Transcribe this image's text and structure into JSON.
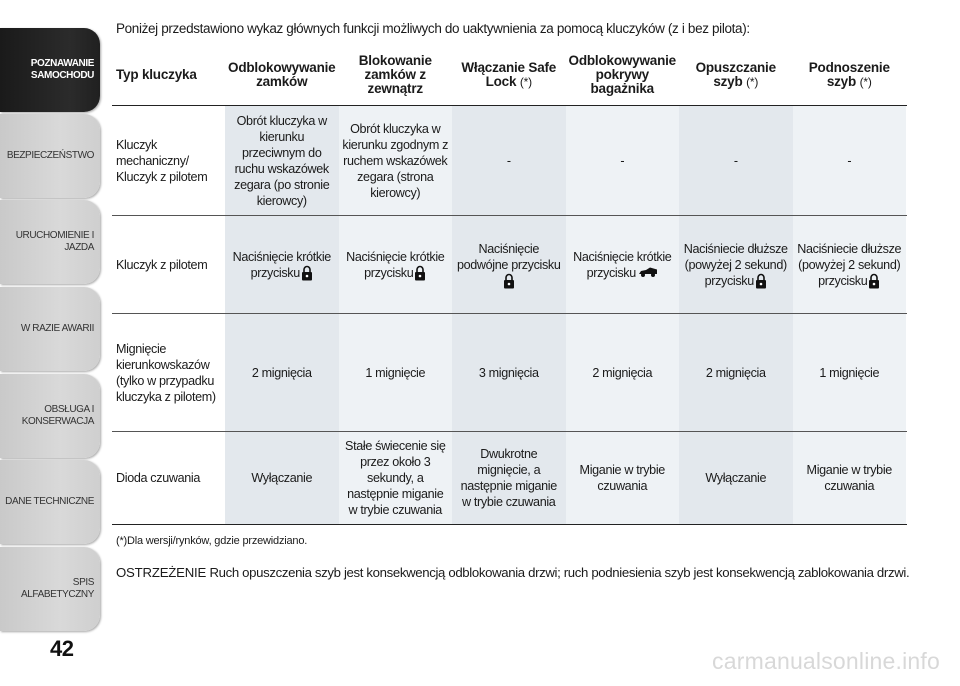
{
  "sidebar": {
    "tabs": [
      {
        "label": "POZNAWANIE SAMOCHODU",
        "active": true
      },
      {
        "label": "BEZPIECZEŃSTWO",
        "active": false
      },
      {
        "label": "URUCHOMIENIE I JAZDA",
        "active": false
      },
      {
        "label": "W RAZIE AWARII",
        "active": false
      },
      {
        "label": "OBSŁUGA I KONSERWACJA",
        "active": false
      },
      {
        "label": "DANE TECHNICZNE",
        "active": false
      },
      {
        "label": "SPIS ALFABETYCZNY",
        "active": false
      }
    ],
    "page_number": "42"
  },
  "intro": "Poniżej przedstawiono wykaz głównych funkcji możliwych do uaktywnienia za pomocą kluczyków (z i bez pilota):",
  "table": {
    "headers": [
      "Typ kluczyka",
      "Odblokowywanie zamków",
      "Blokowanie zamków z zewnątrz",
      "Włączanie Safe Lock",
      "Odblokowywanie pokrywy bagażnika",
      "Opuszczanie szyb",
      "Podnoszenie szyb"
    ],
    "header_note": "(*)",
    "rows": [
      {
        "label": "Kluczyk mechaniczny/ Kluczyk z pilotem",
        "cells": [
          "Obrót kluczyka w kierunku przeciwnym do ruchu wskazówek zegara (po stronie kierowcy)",
          "Obrót kluczyka w kierunku zgodnym z ruchem wskazówek zegara (strona kierowcy)",
          "-",
          "-",
          "-",
          "-"
        ]
      },
      {
        "label": "Kluczyk z pilotem",
        "cells": [
          "Naciśnięcie krótkie przycisku",
          "Naciśnięcie krótkie przycisku",
          "Naciśnięcie podwójne przycisku",
          "Naciśnięcie krótkie przycisku",
          "Naciśniecie dłuższe (powyżej 2 sekund) przycisku",
          "Naciśniecie dłuższe (powyżej 2 sekund) przycisku"
        ],
        "icons": [
          "lock-icon",
          "lock-icon",
          "lock-icon",
          "trunk-car-icon",
          "lock-icon",
          "lock-icon"
        ]
      },
      {
        "label": "Mignięcie kierunkowskazów (tylko w przypadku kluczyka z pilotem)",
        "cells": [
          "2 mignięcia",
          "1 mignięcie",
          "3 mignięcia",
          "2 mignięcia",
          "2 mignięcia",
          "1 mignięcie"
        ]
      },
      {
        "label": "Dioda czuwania",
        "cells": [
          "Wyłączanie",
          "Stałe świecenie się przez około 3 sekundy, a następnie miganie w trybie czuwania",
          "Dwukrotne mignięcie, a następnie miganie w trybie czuwania",
          "Miganie w trybie czuwania",
          "Wyłączanie",
          "Miganie w trybie czuwania"
        ]
      }
    ]
  },
  "footnote": "(*)Dla wersji/rynków, gdzie przewidziano.",
  "warning": {
    "keyword": "OSTRZEŻENIE",
    "text": "Ruch opuszczenia szyb jest konsekwencją odblokowania drzwi; ruch podniesienia szyb jest konsekwencją zablokowania drzwi."
  },
  "watermark": "carmanualsonline.info",
  "colors": {
    "active_tab": "#1f1f1f",
    "inactive_tab": "#d2d2d2",
    "cell_fill": "#e3e8ed",
    "watermark": "#d8d8d8"
  }
}
